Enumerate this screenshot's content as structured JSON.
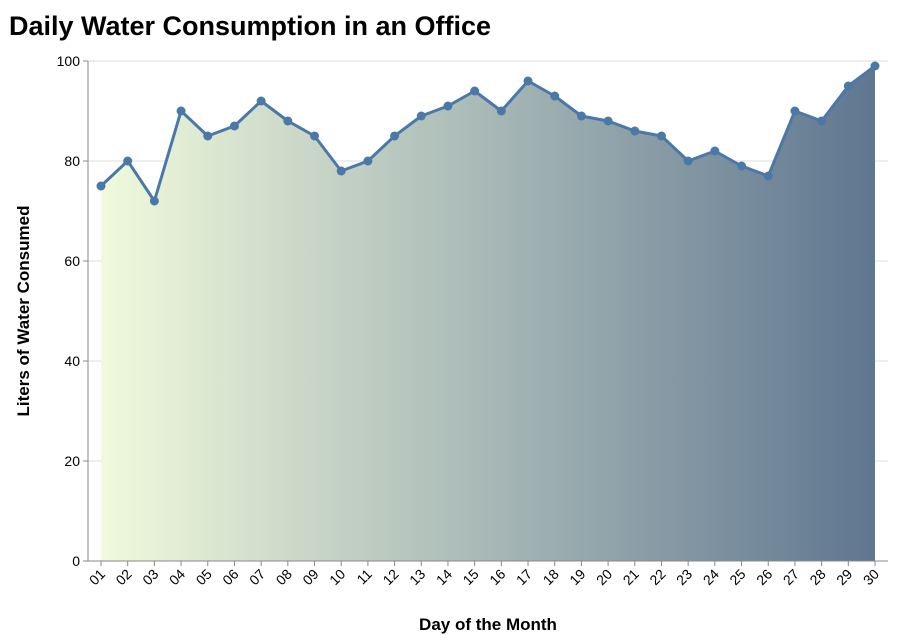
{
  "chart_data": {
    "type": "area",
    "title": "Daily Water Consumption in an Office",
    "xlabel": "Day of the Month",
    "ylabel": "Liters of Water Consumed",
    "categories": [
      "01",
      "02",
      "03",
      "04",
      "05",
      "06",
      "07",
      "08",
      "09",
      "10",
      "11",
      "12",
      "13",
      "14",
      "15",
      "16",
      "17",
      "18",
      "19",
      "20",
      "21",
      "22",
      "23",
      "24",
      "25",
      "26",
      "27",
      "28",
      "29",
      "30"
    ],
    "series": [
      {
        "values": [
          75,
          80,
          72,
          90,
          85,
          87,
          92,
          88,
          85,
          78,
          80,
          85,
          89,
          91,
          94,
          90,
          96,
          93,
          89,
          88,
          86,
          85,
          80,
          82,
          79,
          77,
          90,
          88,
          95,
          99
        ]
      }
    ],
    "ylim": [
      0,
      100
    ],
    "yticks": [
      0,
      20,
      40,
      60,
      80,
      100
    ],
    "grid": true,
    "legend": "none",
    "colors": {
      "line": "#4c78a8",
      "point": "#4c78a8",
      "fill_start": "#f0fadc",
      "fill_end": "#5f7690"
    }
  }
}
